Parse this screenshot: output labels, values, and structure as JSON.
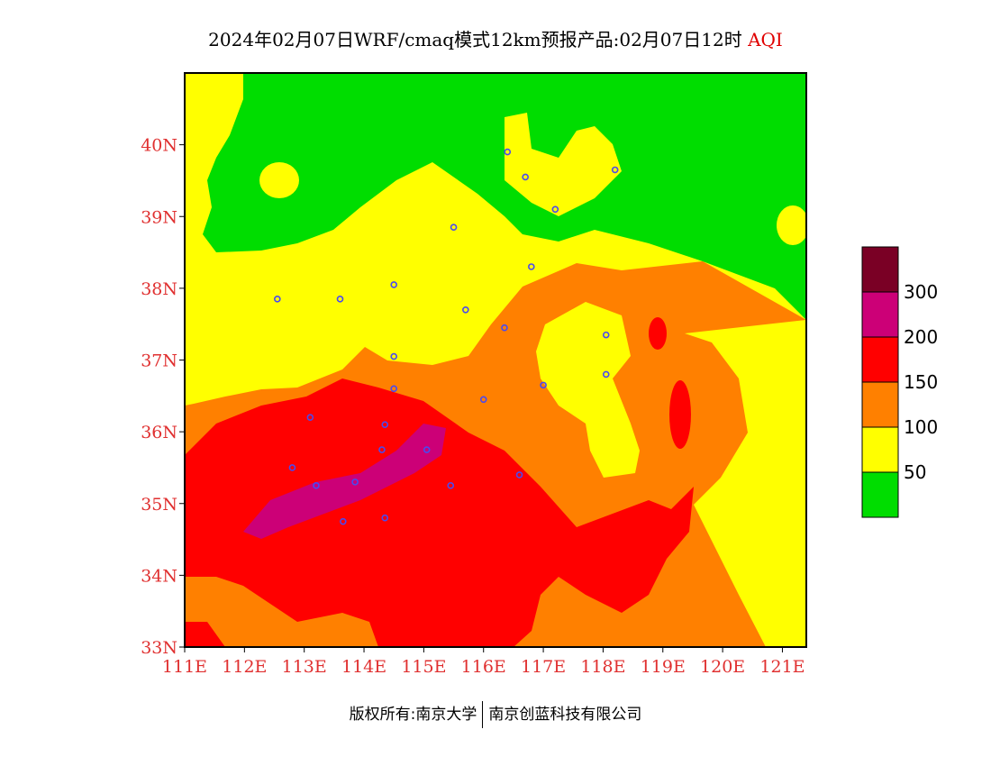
{
  "title": {
    "main": "2024年02月07日WRF/cmaq模式12km预报产品:02月07日12时",
    "variable": "AQI"
  },
  "footer": {
    "copyright": "版权所有:南京大学",
    "company": "南京创蓝科技有限公司"
  },
  "map": {
    "lat_range": [
      33,
      41
    ],
    "lon_range": [
      111,
      121.4
    ],
    "lat_ticks": [
      "33N",
      "34N",
      "35N",
      "36N",
      "37N",
      "38N",
      "39N",
      "40N"
    ],
    "lon_ticks": [
      "111E",
      "112E",
      "113E",
      "114E",
      "115E",
      "116E",
      "117E",
      "118E",
      "119E",
      "120E",
      "121E"
    ],
    "station_marker_color": "#4a4af0"
  },
  "legend": {
    "labels": [
      "50",
      "100",
      "150",
      "200",
      "300"
    ],
    "classes": [
      {
        "range": "0-50",
        "color": "#00dd00"
      },
      {
        "range": "50-100",
        "color": "#ffff00"
      },
      {
        "range": "100-150",
        "color": "#ff8000"
      },
      {
        "range": "150-200",
        "color": "#ff0000"
      },
      {
        "range": "200-300",
        "color": "#cc0077"
      },
      {
        "range": ">300",
        "color": "#7a0025"
      }
    ]
  }
}
